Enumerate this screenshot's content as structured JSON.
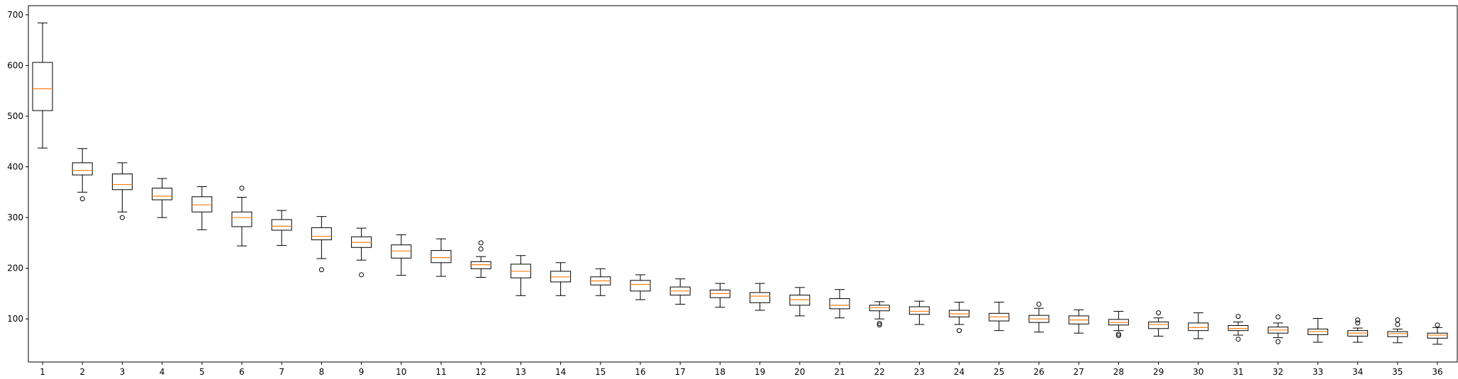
{
  "chart_data": {
    "type": "boxplot",
    "title": "",
    "xlabel": "",
    "ylabel": "",
    "x_ticks": [
      "1",
      "2",
      "3",
      "4",
      "5",
      "6",
      "7",
      "8",
      "9",
      "10",
      "11",
      "12",
      "13",
      "14",
      "15",
      "16",
      "17",
      "18",
      "19",
      "20",
      "21",
      "22",
      "23",
      "24",
      "25",
      "26",
      "27",
      "28",
      "29",
      "30",
      "31",
      "32",
      "33",
      "34",
      "35",
      "36"
    ],
    "y_ticks": [
      "100",
      "200",
      "300",
      "400",
      "500",
      "600",
      "700"
    ],
    "ylim": [
      15,
      718
    ],
    "colors": {
      "median": "#ff7f0e",
      "box": "#000000",
      "background": "#ffffff"
    },
    "boxes": [
      {
        "whislo": 437,
        "q1": 511,
        "med": 554,
        "q3": 606,
        "whishi": 684,
        "fliers": []
      },
      {
        "whislo": 350,
        "q1": 384,
        "med": 393,
        "q3": 408,
        "whishi": 436,
        "fliers": [
          337
        ]
      },
      {
        "whislo": 311,
        "q1": 355,
        "med": 365,
        "q3": 386,
        "whishi": 408,
        "fliers": [
          300
        ]
      },
      {
        "whislo": 300,
        "q1": 335,
        "med": 342,
        "q3": 358,
        "whishi": 377,
        "fliers": []
      },
      {
        "whislo": 276,
        "q1": 311,
        "med": 325,
        "q3": 341,
        "whishi": 361,
        "fliers": []
      },
      {
        "whislo": 244,
        "q1": 282,
        "med": 300,
        "q3": 311,
        "whishi": 340,
        "fliers": [
          358
        ]
      },
      {
        "whislo": 245,
        "q1": 275,
        "med": 283,
        "q3": 296,
        "whishi": 314,
        "fliers": []
      },
      {
        "whislo": 219,
        "q1": 256,
        "med": 263,
        "q3": 280,
        "whishi": 302,
        "fliers": [
          197
        ]
      },
      {
        "whislo": 216,
        "q1": 241,
        "med": 251,
        "q3": 262,
        "whishi": 279,
        "fliers": [
          187
        ]
      },
      {
        "whislo": 186,
        "q1": 220,
        "med": 234,
        "q3": 246,
        "whishi": 266,
        "fliers": []
      },
      {
        "whislo": 184,
        "q1": 211,
        "med": 221,
        "q3": 235,
        "whishi": 258,
        "fliers": []
      },
      {
        "whislo": 182,
        "q1": 199,
        "med": 207,
        "q3": 213,
        "whishi": 223,
        "fliers": [
          238,
          250
        ]
      },
      {
        "whislo": 146,
        "q1": 181,
        "med": 194,
        "q3": 208,
        "whishi": 225,
        "fliers": []
      },
      {
        "whislo": 146,
        "q1": 173,
        "med": 183,
        "q3": 194,
        "whishi": 211,
        "fliers": []
      },
      {
        "whislo": 146,
        "q1": 167,
        "med": 175,
        "q3": 183,
        "whishi": 199,
        "fliers": []
      },
      {
        "whislo": 138,
        "q1": 155,
        "med": 168,
        "q3": 176,
        "whishi": 187,
        "fliers": []
      },
      {
        "whislo": 129,
        "q1": 147,
        "med": 155,
        "q3": 163,
        "whishi": 179,
        "fliers": []
      },
      {
        "whislo": 123,
        "q1": 142,
        "med": 150,
        "q3": 157,
        "whishi": 170,
        "fliers": []
      },
      {
        "whislo": 117,
        "q1": 132,
        "med": 145,
        "q3": 152,
        "whishi": 170,
        "fliers": []
      },
      {
        "whislo": 106,
        "q1": 127,
        "med": 138,
        "q3": 147,
        "whishi": 162,
        "fliers": []
      },
      {
        "whislo": 102,
        "q1": 120,
        "med": 127,
        "q3": 140,
        "whishi": 158,
        "fliers": []
      },
      {
        "whislo": 100,
        "q1": 116,
        "med": 122,
        "q3": 127,
        "whishi": 134,
        "fliers": [
          91,
          88
        ]
      },
      {
        "whislo": 89,
        "q1": 109,
        "med": 115,
        "q3": 124,
        "whishi": 135,
        "fliers": []
      },
      {
        "whislo": 89,
        "q1": 104,
        "med": 110,
        "q3": 117,
        "whishi": 133,
        "fliers": [
          77
        ]
      },
      {
        "whislo": 77,
        "q1": 96,
        "med": 104,
        "q3": 111,
        "whishi": 133,
        "fliers": []
      },
      {
        "whislo": 74,
        "q1": 93,
        "med": 100,
        "q3": 107,
        "whishi": 121,
        "fliers": [
          129
        ]
      },
      {
        "whislo": 72,
        "q1": 90,
        "med": 98,
        "q3": 106,
        "whishi": 118,
        "fliers": []
      },
      {
        "whislo": 77,
        "q1": 88,
        "med": 93,
        "q3": 99,
        "whishi": 115,
        "fliers": [
          70,
          67
        ]
      },
      {
        "whislo": 66,
        "q1": 81,
        "med": 89,
        "q3": 94,
        "whishi": 102,
        "fliers": [
          112
        ]
      },
      {
        "whislo": 61,
        "q1": 77,
        "med": 83,
        "q3": 92,
        "whishi": 112,
        "fliers": []
      },
      {
        "whislo": 68,
        "q1": 77,
        "med": 81,
        "q3": 87,
        "whishi": 94,
        "fliers": [
          105,
          60
        ]
      },
      {
        "whislo": 63,
        "q1": 72,
        "med": 78,
        "q3": 84,
        "whishi": 92,
        "fliers": [
          104,
          55
        ]
      },
      {
        "whislo": 54,
        "q1": 69,
        "med": 75,
        "q3": 80,
        "whishi": 101,
        "fliers": []
      },
      {
        "whislo": 54,
        "q1": 66,
        "med": 72,
        "q3": 77,
        "whishi": 82,
        "fliers": [
          98,
          92
        ]
      },
      {
        "whislo": 53,
        "q1": 65,
        "med": 71,
        "q3": 75,
        "whishi": 80,
        "fliers": [
          98,
          89
        ]
      },
      {
        "whislo": 50,
        "q1": 62,
        "med": 68,
        "q3": 72,
        "whishi": 83,
        "fliers": [
          88
        ]
      }
    ]
  }
}
